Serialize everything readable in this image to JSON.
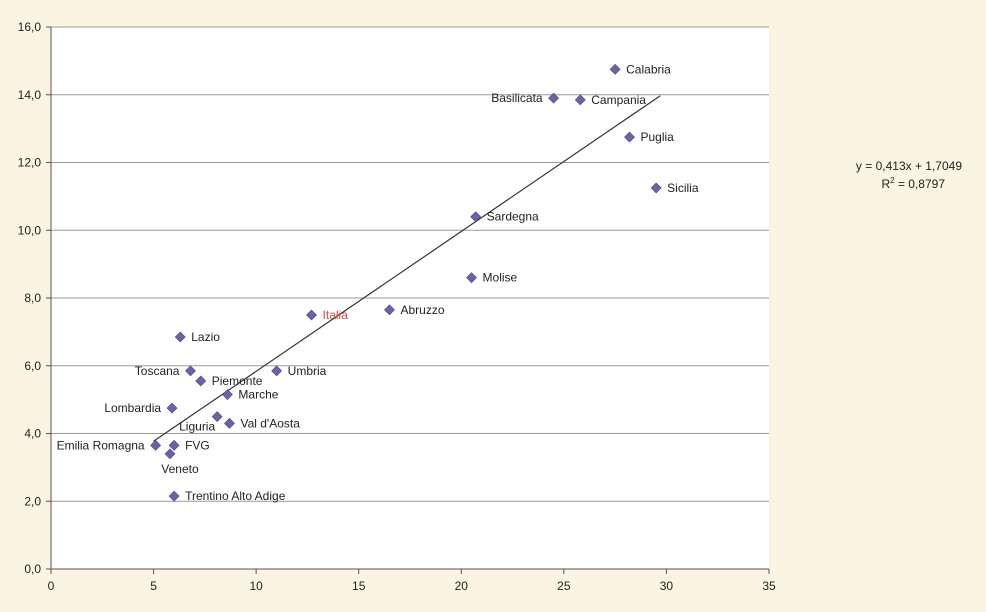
{
  "chart_data": {
    "type": "scatter",
    "title": "",
    "xlabel": "",
    "ylabel": "",
    "xlim": [
      0,
      35
    ],
    "ylim": [
      0,
      16
    ],
    "x_ticks": [
      "0",
      "5",
      "10",
      "15",
      "20",
      "25",
      "30",
      "35"
    ],
    "y_ticks": [
      "0,0",
      "2,0",
      "4,0",
      "6,0",
      "8,0",
      "10,0",
      "12,0",
      "14,0",
      "16,0"
    ],
    "grid": "horizontal",
    "points": [
      {
        "label": "Calabria",
        "x": 27.5,
        "y": 14.75
      },
      {
        "label": "Basilicata",
        "x": 24.5,
        "y": 13.9
      },
      {
        "label": "Campania",
        "x": 25.8,
        "y": 13.85
      },
      {
        "label": "Puglia",
        "x": 28.2,
        "y": 12.75
      },
      {
        "label": "Sicilia",
        "x": 29.5,
        "y": 11.25
      },
      {
        "label": "Sardegna",
        "x": 20.7,
        "y": 10.4
      },
      {
        "label": "Molise",
        "x": 20.5,
        "y": 8.6
      },
      {
        "label": "Abruzzo",
        "x": 16.5,
        "y": 7.65
      },
      {
        "label": "Italia",
        "x": 12.7,
        "y": 7.5,
        "highlight": true
      },
      {
        "label": "Lazio",
        "x": 6.3,
        "y": 6.85
      },
      {
        "label": "Toscana",
        "x": 6.8,
        "y": 5.85
      },
      {
        "label": "Piemonte",
        "x": 7.3,
        "y": 5.55
      },
      {
        "label": "Umbria",
        "x": 11.0,
        "y": 5.85
      },
      {
        "label": "Marche",
        "x": 8.6,
        "y": 5.15
      },
      {
        "label": "Lombardia",
        "x": 5.9,
        "y": 4.75
      },
      {
        "label": "Liguria",
        "x": 8.1,
        "y": 4.5
      },
      {
        "label": "Val d'Aosta",
        "x": 8.7,
        "y": 4.3
      },
      {
        "label": "Emilia Romagna",
        "x": 5.1,
        "y": 3.65
      },
      {
        "label": "FVG",
        "x": 6.0,
        "y": 3.65
      },
      {
        "label": "Veneto",
        "x": 5.8,
        "y": 3.4
      },
      {
        "label": "Trentino Alto Adige",
        "x": 6.0,
        "y": 2.15
      }
    ],
    "trendline": {
      "equation": "y = 0,413x + 1,7049",
      "r2_prefix": "R",
      "r2_exp": "2",
      "r2_value": " = 0,8797",
      "x_range": [
        5.0,
        29.7
      ]
    },
    "colors": {
      "background": "#fdf3e3",
      "plot_background": "#ffffff",
      "marker": "#6a63a8",
      "gridline": "#9a9a9a",
      "trendline": "#333333",
      "text": "#222222",
      "highlight_text": "#e8403a"
    }
  }
}
